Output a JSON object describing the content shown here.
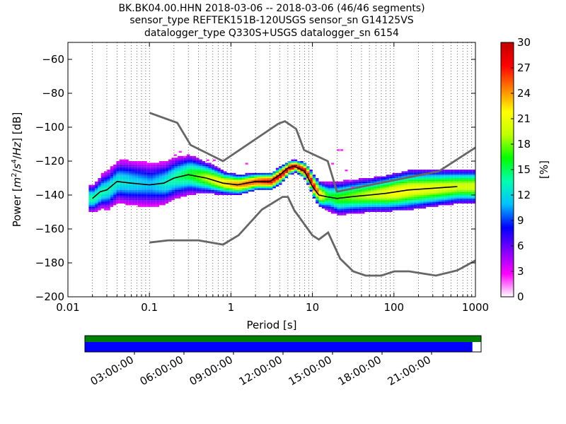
{
  "chart_data": {
    "type": "heatmap",
    "title_lines": [
      "BK.BK04.00.HHN   2018-03-06 -- 2018-03-06  (46/46 segments)",
      "sensor_type REFTEK151B-120USGS sensor_sn G14125VS",
      "datalogger_type Q330S+USGS datalogger_sn 6154"
    ],
    "xlabel": "Period [s]",
    "ylabel": "Power [m²/s⁴/Hz] [dB]",
    "ylabel_parts": {
      "prefix": "Power [",
      "unit_m": "m",
      "exp2": "2",
      "slash1": "/",
      "unit_s": "s",
      "exp4": "4",
      "slash2": "/",
      "unit_hz": "Hz",
      "suffix": "] [dB]"
    },
    "x_scale": "log",
    "xlim": [
      0.01,
      1000
    ],
    "ylim": [
      -200,
      -50
    ],
    "x_ticks": [
      {
        "value": 0.01,
        "label": "0.01"
      },
      {
        "value": 0.1,
        "label": "0.1"
      },
      {
        "value": 1,
        "label": "1"
      },
      {
        "value": 10,
        "label": "10"
      },
      {
        "value": 100,
        "label": "100"
      },
      {
        "value": 1000,
        "label": "1000"
      }
    ],
    "y_ticks": [
      {
        "value": -60,
        "label": "−60"
      },
      {
        "value": -80,
        "label": "−80"
      },
      {
        "value": -100,
        "label": "−100"
      },
      {
        "value": -120,
        "label": "−120"
      },
      {
        "value": -140,
        "label": "−140"
      },
      {
        "value": -160,
        "label": "−160"
      },
      {
        "value": -180,
        "label": "−180"
      },
      {
        "value": -200,
        "label": "−200"
      }
    ],
    "grid": "x-dotted",
    "colorbar": {
      "label": "[%]",
      "range": [
        0,
        30
      ],
      "ticks": [
        {
          "value": 0,
          "label": "0"
        },
        {
          "value": 3,
          "label": "3"
        },
        {
          "value": 6,
          "label": "6"
        },
        {
          "value": 9,
          "label": "9"
        },
        {
          "value": 12,
          "label": "12"
        },
        {
          "value": 15,
          "label": "15"
        },
        {
          "value": 18,
          "label": "18"
        },
        {
          "value": 21,
          "label": "21"
        },
        {
          "value": 24,
          "label": "24"
        },
        {
          "value": 27,
          "label": "27"
        },
        {
          "value": 30,
          "label": "30"
        }
      ],
      "colors": [
        "#ffffff",
        "#ff00ff",
        "#8000ff",
        "#0000ff",
        "#00c0ff",
        "#00ffb0",
        "#00ff00",
        "#c0ff00",
        "#ffff00",
        "#ff8000",
        "#ff0000",
        "#c00000"
      ]
    },
    "noise_model_high": {
      "name": "NHNM",
      "color": "#666666",
      "x": [
        0.1,
        0.22,
        0.32,
        0.8,
        3.8,
        4.6,
        6.3,
        7.9,
        15.4,
        20,
        354.8,
        1000
      ],
      "y": [
        -91.5,
        -97.4,
        -110.5,
        -120,
        -98,
        -96.5,
        -101,
        -113.5,
        -120,
        -138,
        -126,
        -112
      ]
    },
    "noise_model_low": {
      "name": "NLNM",
      "color": "#666666",
      "x": [
        0.1,
        0.17,
        0.4,
        0.8,
        1.24,
        2.4,
        4.3,
        5.0,
        6.0,
        10.0,
        12.0,
        15.6,
        21.9,
        31.6,
        45,
        70,
        101,
        154,
        328,
        600,
        1000
      ],
      "y": [
        -168,
        -166.7,
        -166.7,
        -169.2,
        -163.7,
        -148.6,
        -141.1,
        -141.1,
        -149,
        -163.8,
        -166.2,
        -162.1,
        -177.5,
        -185,
        -187.5,
        -187.5,
        -185,
        -185,
        -187.5,
        -184.4,
        -178.6
      ]
    },
    "mean_curve": {
      "color": "#000000",
      "x": [
        0.02,
        0.025,
        0.03,
        0.04,
        0.06,
        0.1,
        0.15,
        0.2,
        0.3,
        0.5,
        0.8,
        1.2,
        2,
        3,
        4,
        5,
        6,
        8,
        10,
        12,
        15,
        20,
        30,
        50,
        80,
        150,
        300,
        600
      ],
      "y": [
        -142,
        -138,
        -137,
        -132,
        -133,
        -134,
        -133,
        -130,
        -128,
        -130,
        -133,
        -134,
        -132,
        -132,
        -128,
        -124,
        -123,
        -126,
        -135,
        -140,
        -141,
        -142,
        -141,
        -140,
        -139,
        -137,
        -136,
        -135
      ]
    },
    "density": {
      "mode": {
        "x": [
          0.02,
          0.025,
          0.03,
          0.04,
          0.06,
          0.1,
          0.15,
          0.2,
          0.3,
          0.5,
          0.8,
          1.2,
          2,
          3,
          4,
          5,
          6,
          8,
          10,
          12,
          15,
          20,
          30,
          50,
          80,
          150,
          300,
          600
        ],
        "y": [
          -142,
          -138,
          -137,
          -132,
          -133,
          -134,
          -133,
          -130,
          -128,
          -130,
          -133,
          -134,
          -132,
          -132,
          -128,
          -124,
          -123,
          -126,
          -135,
          -140,
          -141,
          -142,
          -141,
          -140,
          -139,
          -137,
          -136,
          -135
        ]
      },
      "spread": {
        "x": [
          0.02,
          0.03,
          0.05,
          0.1,
          0.3,
          0.8,
          2,
          4,
          6,
          8,
          10,
          15,
          20,
          50,
          150,
          600
        ],
        "y": [
          5,
          7,
          8,
          8,
          7,
          4,
          3,
          3,
          2,
          3,
          4,
          5,
          6,
          6,
          7,
          6
        ]
      },
      "peak_percent": [
        {
          "x": 0.02,
          "v": 14
        },
        {
          "x": 0.1,
          "v": 11
        },
        {
          "x": 0.3,
          "v": 16
        },
        {
          "x": 1,
          "v": 24
        },
        {
          "x": 3,
          "v": 28
        },
        {
          "x": 6,
          "v": 30
        },
        {
          "x": 10,
          "v": 28
        },
        {
          "x": 15,
          "v": 16
        },
        {
          "x": 30,
          "v": 18
        },
        {
          "x": 100,
          "v": 22
        },
        {
          "x": 600,
          "v": 20
        }
      ],
      "x_bin_factor": 1.0905,
      "y_bin_db": 1,
      "outliers": [
        {
          "x": 0.2,
          "y": -117
        },
        {
          "x": 0.23,
          "y": -115
        },
        {
          "x": 0.26,
          "y": -118
        },
        {
          "x": 0.5,
          "y": -120
        },
        {
          "x": 0.6,
          "y": -120
        },
        {
          "x": 1.5,
          "y": -122
        },
        {
          "x": 17,
          "y": -122
        },
        {
          "x": 20,
          "y": -114
        },
        {
          "x": 22,
          "y": -114
        },
        {
          "x": 25,
          "y": -126
        },
        {
          "x": 28,
          "y": -132
        },
        {
          "x": 30,
          "y": -136
        }
      ]
    }
  },
  "timeline": {
    "tick_labels": [
      "03:00:00",
      "06:00:00",
      "09:00:00",
      "12:00:00",
      "15:00:00",
      "18:00:00",
      "21:00:00"
    ],
    "top_bar_color": "#008000",
    "bottom_bar_color": "#0000ff",
    "bottom_bar_fill_fraction": 0.978
  }
}
